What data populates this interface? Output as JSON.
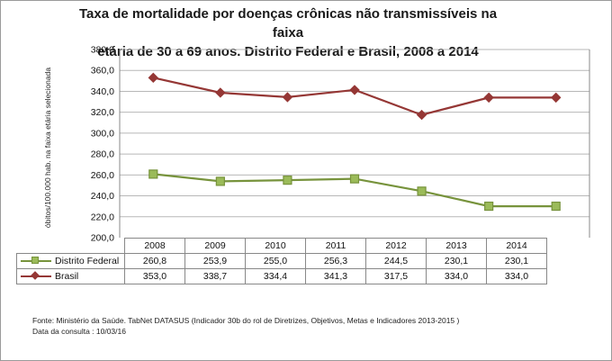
{
  "chart_data": {
    "type": "line",
    "title_lines": [
      "Taxa de mortalidade por doenças crônicas não transmissíveis na faixa",
      "etária de 30 a 69 anos. Distrito Federal e Brasil, 2008 a 2014"
    ],
    "ylabel": "óbitos/100.000 hab. na faixa etária selecionada",
    "xlabel": "",
    "ylim": [
      200,
      380
    ],
    "ytick_step": 20,
    "ytick_labels": [
      "200,0",
      "220,0",
      "240,0",
      "260,0",
      "280,0",
      "300,0",
      "320,0",
      "340,0",
      "360,0",
      "380,0"
    ],
    "categories": [
      "2008",
      "2009",
      "2010",
      "2011",
      "2012",
      "2013",
      "2014"
    ],
    "series": [
      {
        "name": "Distrito Federal",
        "values": [
          260.8,
          253.9,
          255.0,
          256.3,
          244.5,
          230.1,
          230.1
        ],
        "value_labels": [
          "260,8",
          "253,9",
          "255,0",
          "256,3",
          "244,5",
          "230,1",
          "230,1"
        ],
        "color": "#77933c",
        "marker_fill": "#9bbb59",
        "marker": "square-icon"
      },
      {
        "name": "Brasil",
        "values": [
          353.0,
          338.7,
          334.4,
          341.3,
          317.5,
          334.0,
          334.0
        ],
        "value_labels": [
          "353,0",
          "338,7",
          "334,4",
          "341,3",
          "317,5",
          "334,0",
          "334,0"
        ],
        "color": "#953735",
        "marker_fill": "#953735",
        "marker": "diamond-icon"
      }
    ],
    "grid": {
      "horizontal": true,
      "vertical": false
    },
    "legend_placement": "data-table"
  },
  "footer": {
    "source": "Fonte: Ministério da Saúde. TabNet DATASUS (Indicador 30b do rol de Diretrizes, Objetivos, Metas e Indicadores 2013-2015 )",
    "date": "Data da consulta : 10/03/16"
  }
}
